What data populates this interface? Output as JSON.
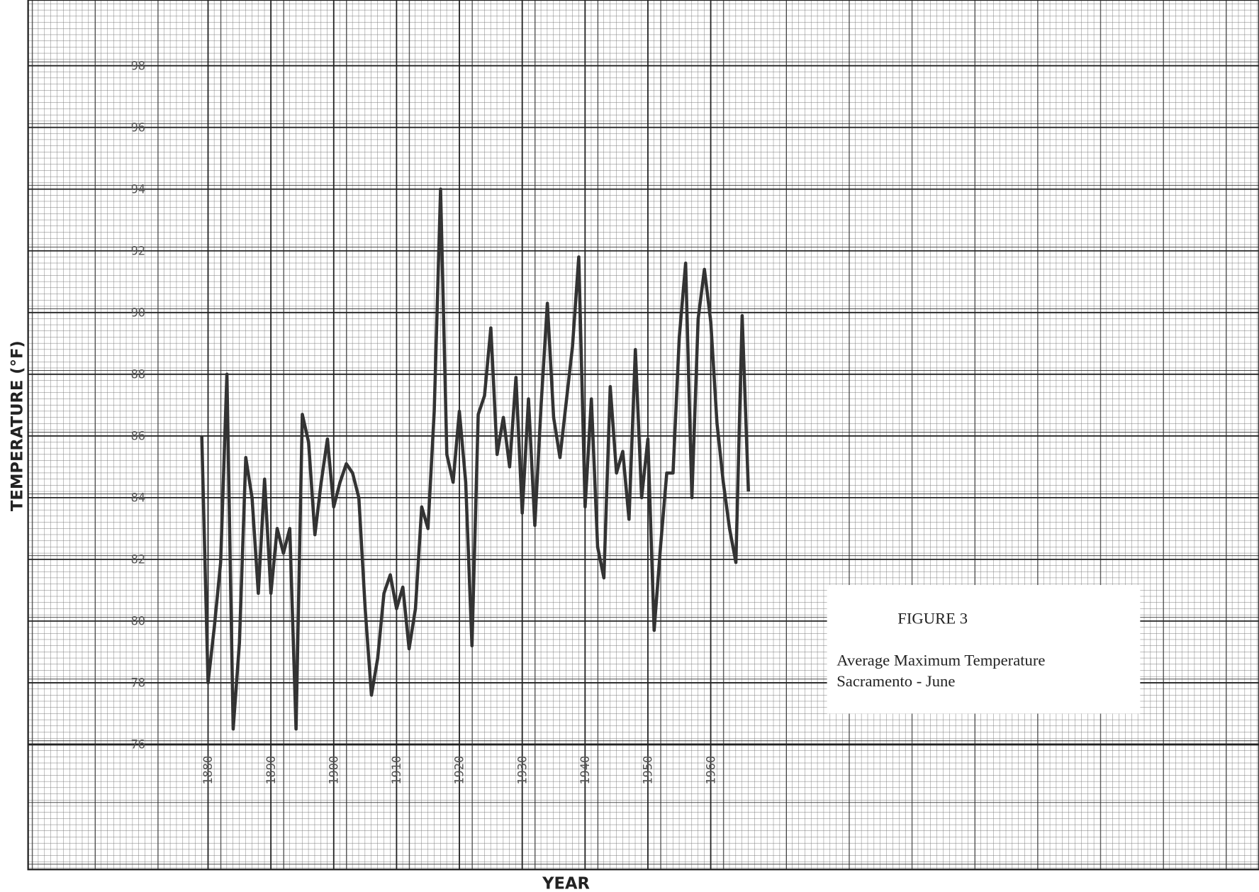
{
  "chart_data": {
    "type": "line",
    "figure_label": "FIGURE 3",
    "title": "Average Maximum Temperature",
    "subtitle": "Sacramento - June",
    "x_label": "YEAR",
    "y_label": "TEMPERATURE (°F)",
    "x": [
      1879,
      1880,
      1881,
      1882,
      1883,
      1884,
      1885,
      1886,
      1887,
      1888,
      1889,
      1890,
      1891,
      1892,
      1893,
      1894,
      1895,
      1896,
      1897,
      1898,
      1899,
      1900,
      1901,
      1902,
      1903,
      1904,
      1905,
      1906,
      1907,
      1908,
      1909,
      1910,
      1911,
      1912,
      1913,
      1914,
      1915,
      1916,
      1917,
      1918,
      1919,
      1920,
      1921,
      1922,
      1923,
      1924,
      1925,
      1926,
      1927,
      1928,
      1929,
      1930,
      1931,
      1932,
      1933,
      1934,
      1935,
      1936,
      1937,
      1938,
      1939,
      1940,
      1941,
      1942,
      1943,
      1944,
      1945,
      1946,
      1947,
      1948,
      1949,
      1950,
      1951,
      1952,
      1953,
      1954,
      1955,
      1956,
      1957,
      1958,
      1959,
      1960,
      1961,
      1962,
      1963,
      1964,
      1965,
      1966
    ],
    "values": [
      86.0,
      78.0,
      79.8,
      81.9,
      88.0,
      76.5,
      79.3,
      85.3,
      84.0,
      80.9,
      84.6,
      80.9,
      83.0,
      82.2,
      83.0,
      76.5,
      86.7,
      85.8,
      82.8,
      84.5,
      85.9,
      83.7,
      84.5,
      85.1,
      84.8,
      84.0,
      80.4,
      77.6,
      78.8,
      80.9,
      81.5,
      80.4,
      81.1,
      79.1,
      80.4,
      83.7,
      83.0,
      86.8,
      94.0,
      85.4,
      84.5,
      86.8,
      84.5,
      79.2,
      86.7,
      87.3,
      89.5,
      85.4,
      86.6,
      85.0,
      87.9,
      83.5,
      87.2,
      83.1,
      87.0,
      90.3,
      86.6,
      85.3,
      87.1,
      88.9,
      91.8,
      83.7,
      87.2,
      82.4,
      81.4,
      87.6,
      84.8,
      85.5,
      83.3,
      88.8,
      84.0,
      85.9,
      79.7,
      82.4,
      84.8,
      84.8,
      89.2,
      91.6,
      84.0,
      89.8,
      91.4,
      89.7,
      86.4,
      84.5,
      83.0,
      81.9,
      89.9,
      84.2
    ],
    "color": "#333333",
    "xlim": [
      1852,
      2047
    ],
    "ylim": [
      72,
      100
    ],
    "xticks": [
      1880,
      1890,
      1900,
      1910,
      1920,
      1930,
      1940,
      1950,
      1960
    ],
    "yticks": [
      76,
      78,
      80,
      82,
      84,
      86,
      88,
      90,
      92,
      94,
      96,
      98
    ],
    "grid": true
  }
}
